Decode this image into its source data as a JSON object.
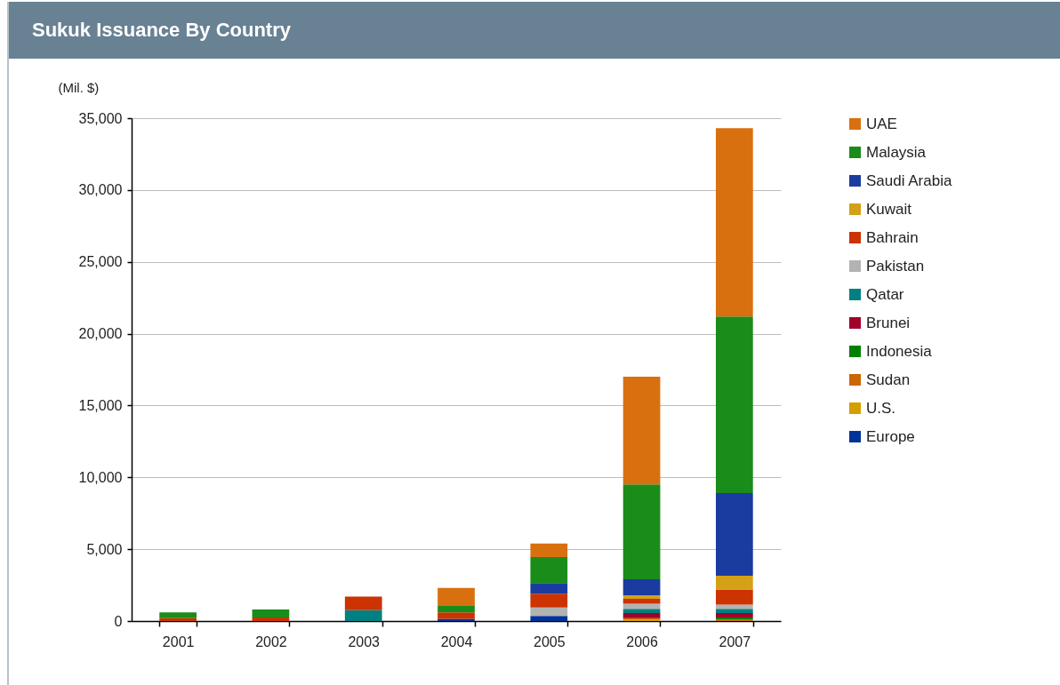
{
  "chart_data": {
    "type": "bar",
    "title": "Sukuk Issuance By Country",
    "ylabel": "(Mil. $)",
    "categories": [
      "2001",
      "2002",
      "2003",
      "2004",
      "2005",
      "2006",
      "2007"
    ],
    "stacked": true,
    "ylim": [
      0,
      35000
    ],
    "yticks": [
      0,
      {
        "value": 5000,
        "label": "5,000"
      },
      {
        "value": 10000,
        "label": "10,000"
      },
      {
        "value": 15000,
        "label": "15,000"
      },
      {
        "value": 20000,
        "label": "20,000"
      },
      {
        "value": 25000,
        "label": "25,000"
      },
      {
        "value": 30000,
        "label": "30,000"
      },
      {
        "value": 35000,
        "label": "35,000"
      }
    ],
    "grid": "y",
    "legend": "right",
    "series": [
      {
        "name": "Europe",
        "color": "#003399",
        "values": [
          null,
          null,
          null,
          150,
          350,
          null,
          null
        ]
      },
      {
        "name": "U.S.",
        "color": "#d4a000",
        "values": [
          null,
          null,
          null,
          null,
          null,
          100,
          null
        ]
      },
      {
        "name": "Sudan",
        "color": "#cc6600",
        "values": [
          null,
          null,
          null,
          null,
          null,
          100,
          100
        ]
      },
      {
        "name": "Indonesia",
        "color": "#008000",
        "values": [
          null,
          null,
          null,
          null,
          null,
          null,
          150
        ]
      },
      {
        "name": "Brunei",
        "color": "#a0002a",
        "values": [
          null,
          null,
          null,
          null,
          null,
          350,
          300
        ]
      },
      {
        "name": "Qatar",
        "color": "#008080",
        "values": [
          null,
          null,
          750,
          null,
          null,
          300,
          300
        ]
      },
      {
        "name": "Pakistan",
        "color": "#b3b3b3",
        "values": [
          null,
          null,
          null,
          null,
          600,
          350,
          300
        ]
      },
      {
        "name": "Bahrain",
        "color": "#cc3300",
        "values": [
          200,
          250,
          950,
          450,
          950,
          350,
          1050
        ]
      },
      {
        "name": "Kuwait",
        "color": "#d4a017",
        "values": [
          null,
          null,
          null,
          null,
          null,
          250,
          950
        ]
      },
      {
        "name": "Saudi Arabia",
        "color": "#1a3ca0",
        "values": [
          null,
          null,
          null,
          null,
          750,
          1100,
          5750
        ]
      },
      {
        "name": "Malaysia",
        "color": "#1a8c1a",
        "values": [
          400,
          550,
          null,
          500,
          1800,
          6600,
          12300
        ]
      },
      {
        "name": "UAE",
        "color": "#d9700f",
        "values": [
          null,
          null,
          null,
          1200,
          950,
          7500,
          13100
        ]
      }
    ]
  }
}
